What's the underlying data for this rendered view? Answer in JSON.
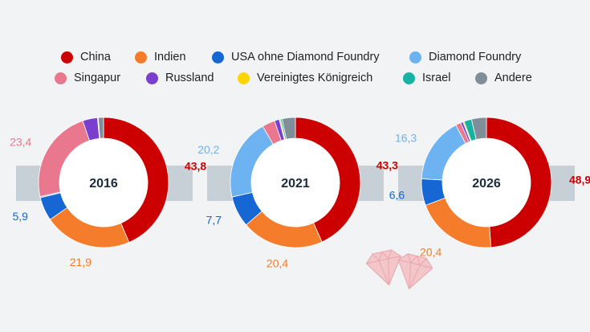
{
  "colors": {
    "China": "#cc0000",
    "Indien": "#f57c2a",
    "USA ohne Diamond Foundry": "#1666d4",
    "Diamond Foundry": "#6db3f2",
    "Singapur": "#e9778e",
    "Russland": "#7a3fcf",
    "Vereinigtes Königreich": "#ffd500",
    "Israel": "#16b3a3",
    "Andere": "#7f8e98",
    "band": "#c7d0d6",
    "background": "#f1f3f5",
    "center_text": "#1a2b3c"
  },
  "legend": [
    {
      "label": "China"
    },
    {
      "label": "Indien"
    },
    {
      "label": "USA ohne Diamond Foundry"
    },
    {
      "label": "Diamond Foundry"
    },
    {
      "label": "Singapur"
    },
    {
      "label": "Russland"
    },
    {
      "label": "Vereinigtes Königreich"
    },
    {
      "label": "Israel"
    },
    {
      "label": "Andere"
    }
  ],
  "chart_data": [
    {
      "type": "pie",
      "year": "2016",
      "slices": [
        {
          "category": "China",
          "value": 43.8,
          "label": "43,8"
        },
        {
          "category": "Indien",
          "value": 21.9,
          "label": "21,9"
        },
        {
          "category": "USA ohne Diamond Foundry",
          "value": 5.9,
          "label": "5,9"
        },
        {
          "category": "Diamond Foundry",
          "value": 0.3,
          "label": ""
        },
        {
          "category": "Singapur",
          "value": 23.4,
          "label": "23,4"
        },
        {
          "category": "Russland",
          "value": 3.7,
          "label": ""
        },
        {
          "category": "Vereinigtes Königreich",
          "value": 0.1,
          "label": ""
        },
        {
          "category": "Israel",
          "value": 0.1,
          "label": ""
        },
        {
          "category": "Andere",
          "value": 1.3,
          "label": ""
        }
      ]
    },
    {
      "type": "pie",
      "year": "2021",
      "slices": [
        {
          "category": "China",
          "value": 43.3,
          "label": "43,3"
        },
        {
          "category": "Indien",
          "value": 20.4,
          "label": "20,4"
        },
        {
          "category": "USA ohne Diamond Foundry",
          "value": 7.7,
          "label": "7,7"
        },
        {
          "category": "Diamond Foundry",
          "value": 20.2,
          "label": "20,2"
        },
        {
          "category": "Singapur",
          "value": 3.2,
          "label": ""
        },
        {
          "category": "Russland",
          "value": 1.2,
          "label": ""
        },
        {
          "category": "Vereinigtes Königreich",
          "value": 0.3,
          "label": ""
        },
        {
          "category": "Israel",
          "value": 0.4,
          "label": ""
        },
        {
          "category": "Andere",
          "value": 3.3,
          "label": ""
        }
      ]
    },
    {
      "type": "pie",
      "year": "2026",
      "slices": [
        {
          "category": "China",
          "value": 48.9,
          "label": "48,9"
        },
        {
          "category": "Indien",
          "value": 20.4,
          "label": "20,4"
        },
        {
          "category": "USA ohne Diamond Foundry",
          "value": 6.6,
          "label": "6,6"
        },
        {
          "category": "Diamond Foundry",
          "value": 16.3,
          "label": "16,3"
        },
        {
          "category": "Singapur",
          "value": 1.3,
          "label": ""
        },
        {
          "category": "Russland",
          "value": 0.6,
          "label": ""
        },
        {
          "category": "Vereinigtes Königreich",
          "value": 0.3,
          "label": ""
        },
        {
          "category": "Israel",
          "value": 1.9,
          "label": ""
        },
        {
          "category": "Andere",
          "value": 3.7,
          "label": ""
        }
      ]
    }
  ]
}
